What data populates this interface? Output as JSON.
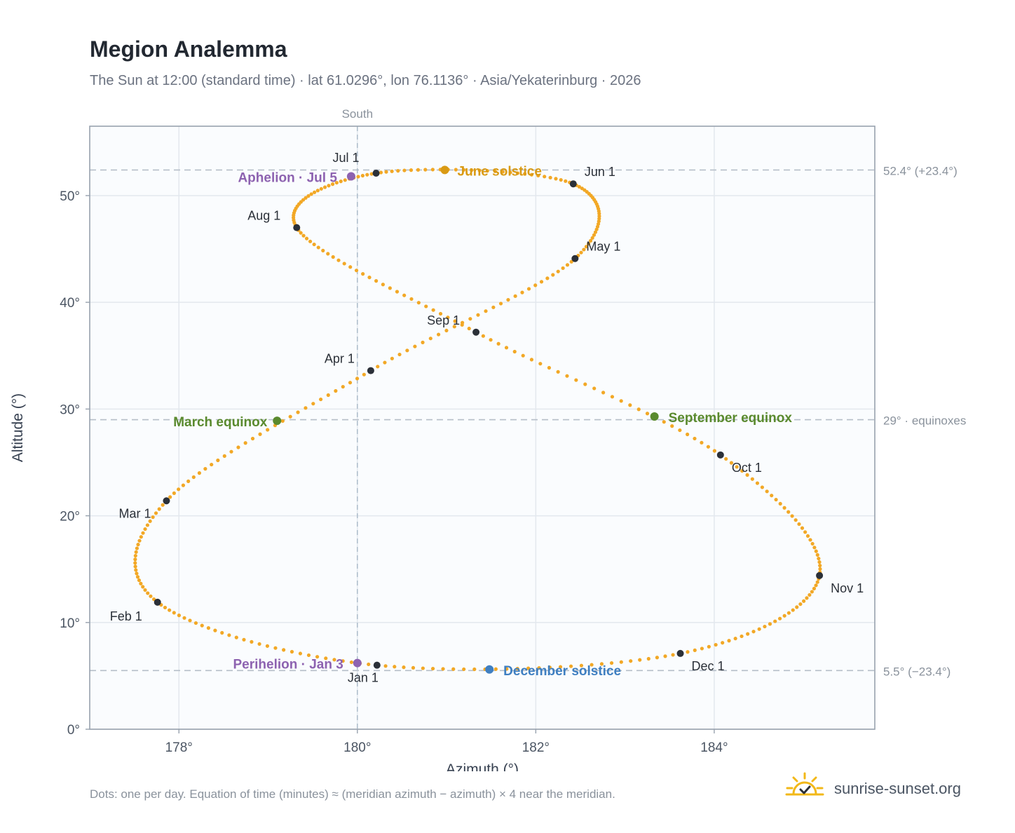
{
  "chart_data": {
    "type": "scatter",
    "title": "Megion Analemma",
    "subtitle": "The Sun at 12:00 (standard time) · lat 61.0296°, lon 76.1136° · Asia/Yekaterinburg · 2026",
    "xlabel": "Azimuth (°)",
    "ylabel": "Altitude (°)",
    "xlim": [
      177,
      185.8
    ],
    "ylim": [
      0,
      56.5
    ],
    "x_ticks": [
      178,
      180,
      182,
      184
    ],
    "x_tick_labels": [
      "178°",
      "180°",
      "182°",
      "184°"
    ],
    "y_ticks": [
      0,
      10,
      20,
      30,
      40,
      50
    ],
    "y_tick_labels": [
      "0°",
      "10°",
      "20°",
      "30°",
      "40°",
      "50°"
    ],
    "grid": true,
    "meridian": {
      "x": 180,
      "label": "South"
    },
    "reference_lines": [
      {
        "y": 52.4,
        "label": "52.4° (+23.4°)"
      },
      {
        "y": 29.0,
        "label": "29° · equinoxes"
      },
      {
        "y": 5.5,
        "label": "5.5° (−23.4°)"
      }
    ],
    "month_points": [
      {
        "label": "Jan 1",
        "x": 180.22,
        "y": 6.0
      },
      {
        "label": "Feb 1",
        "x": 177.76,
        "y": 11.9
      },
      {
        "label": "Mar 1",
        "x": 177.86,
        "y": 21.4
      },
      {
        "label": "Apr 1",
        "x": 180.15,
        "y": 33.6
      },
      {
        "label": "May 1",
        "x": 182.44,
        "y": 44.1
      },
      {
        "label": "Jun 1",
        "x": 182.42,
        "y": 51.1
      },
      {
        "label": "Jul 1",
        "x": 180.21,
        "y": 52.1
      },
      {
        "label": "Aug 1",
        "x": 179.32,
        "y": 47.0
      },
      {
        "label": "Sep 1",
        "x": 181.33,
        "y": 37.2
      },
      {
        "label": "Oct 1",
        "x": 184.07,
        "y": 25.7
      },
      {
        "label": "Nov 1",
        "x": 185.18,
        "y": 14.4
      },
      {
        "label": "Dec 1",
        "x": 183.62,
        "y": 7.1
      }
    ],
    "events": [
      {
        "label": "March equinox",
        "x": 179.1,
        "y": 28.9,
        "color": "#5a8a2e"
      },
      {
        "label": "June solstice",
        "x": 180.98,
        "y": 52.4,
        "color": "#d99a14"
      },
      {
        "label": "September equinox",
        "x": 183.33,
        "y": 29.3,
        "color": "#5a8a2e"
      },
      {
        "label": "December solstice",
        "x": 181.48,
        "y": 5.6,
        "color": "#3f7fc1"
      },
      {
        "label": "Aphelion · Jul 5",
        "x": 179.93,
        "y": 51.8,
        "color": "#8d62b0"
      },
      {
        "label": "Perihelion · Jan 3",
        "x": 180.0,
        "y": 6.2,
        "color": "#8d62b0"
      }
    ],
    "colors": {
      "path": "#f2a826",
      "month_dot": "#2b3038",
      "grid": "#e3e8ee",
      "reference": "#b6bec8",
      "plot_bg": "#fafcfe",
      "frame": "#98a2ae"
    }
  },
  "footnote": "Dots: one per day. Equation of time (minutes) ≈ (meridian azimuth − azimuth) × 4 near the meridian.",
  "brand": {
    "text": "sunrise-sunset.org",
    "icon": "sun-check-logo-icon"
  }
}
